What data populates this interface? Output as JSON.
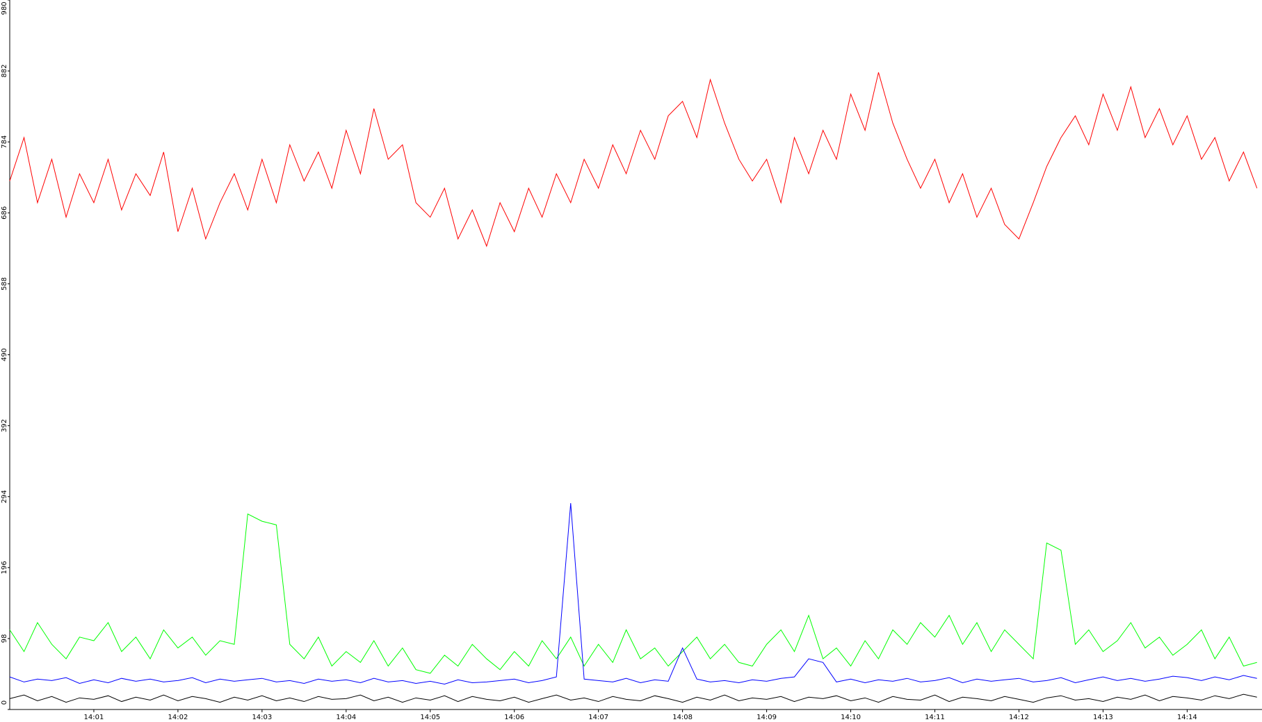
{
  "chart_data": {
    "type": "line",
    "x": [
      0,
      0.17,
      0.33,
      0.5,
      0.67,
      0.83,
      1,
      1.17,
      1.33,
      1.5,
      1.67,
      1.83,
      2,
      2.17,
      2.33,
      2.5,
      2.67,
      2.83,
      3,
      3.17,
      3.33,
      3.5,
      3.67,
      3.83,
      4,
      4.17,
      4.33,
      4.5,
      4.67,
      4.83,
      5,
      5.17,
      5.33,
      5.5,
      5.67,
      5.83,
      6,
      6.17,
      6.33,
      6.5,
      6.67,
      6.83,
      7,
      7.17,
      7.33,
      7.5,
      7.67,
      7.83,
      8,
      8.17,
      8.33,
      8.5,
      8.67,
      8.83,
      9,
      9.17,
      9.33,
      9.5,
      9.67,
      9.83,
      10,
      10.17,
      10.33,
      10.5,
      10.67,
      10.83,
      11,
      11.17,
      11.33,
      11.5,
      11.67,
      11.83,
      12,
      12.17,
      12.33,
      12.5,
      12.67,
      12.83,
      13,
      13.17,
      13.33,
      13.5,
      13.67,
      13.83,
      14,
      14.17,
      14.33,
      14.5,
      14.67,
      14.83
    ],
    "series": [
      {
        "color": "#ff0000",
        "values": [
          730,
          790,
          700,
          760,
          680,
          740,
          700,
          760,
          690,
          740,
          710,
          770,
          660,
          720,
          650,
          700,
          740,
          690,
          760,
          700,
          780,
          730,
          770,
          720,
          800,
          740,
          830,
          760,
          780,
          700,
          680,
          720,
          650,
          690,
          640,
          700,
          660,
          720,
          680,
          740,
          700,
          760,
          720,
          780,
          740,
          800,
          760,
          820,
          840,
          790,
          870,
          810,
          760,
          730,
          760,
          700,
          790,
          740,
          800,
          760,
          850,
          800,
          880,
          810,
          760,
          720,
          760,
          700,
          740,
          680,
          720,
          670,
          650,
          700,
          750,
          790,
          820,
          780,
          850,
          800,
          860,
          790,
          830,
          780,
          820,
          760,
          790,
          730,
          770,
          720
        ]
      },
      {
        "color": "#00ff00",
        "values": [
          110,
          80,
          120,
          90,
          70,
          100,
          95,
          120,
          80,
          100,
          70,
          110,
          85,
          100,
          75,
          95,
          90,
          270,
          260,
          255,
          90,
          70,
          100,
          60,
          80,
          65,
          95,
          60,
          85,
          55,
          50,
          75,
          60,
          90,
          70,
          55,
          80,
          60,
          95,
          70,
          100,
          60,
          90,
          65,
          110,
          70,
          85,
          60,
          80,
          100,
          70,
          90,
          65,
          60,
          90,
          110,
          80,
          130,
          70,
          85,
          60,
          95,
          70,
          110,
          90,
          120,
          100,
          130,
          90,
          120,
          80,
          110,
          90,
          70,
          230,
          220,
          90,
          110,
          80,
          95,
          120,
          85,
          100,
          75,
          90,
          110,
          70,
          100,
          60,
          65
        ]
      },
      {
        "color": "#0000ff",
        "values": [
          45,
          38,
          42,
          40,
          44,
          36,
          41,
          37,
          43,
          39,
          42,
          38,
          40,
          44,
          37,
          42,
          39,
          41,
          43,
          38,
          40,
          36,
          42,
          39,
          41,
          37,
          43,
          38,
          40,
          36,
          39,
          35,
          41,
          37,
          38,
          40,
          42,
          37,
          40,
          45,
          285,
          42,
          40,
          38,
          43,
          37,
          41,
          39,
          85,
          42,
          38,
          40,
          37,
          41,
          39,
          43,
          45,
          70,
          65,
          38,
          42,
          37,
          41,
          39,
          43,
          38,
          40,
          44,
          37,
          42,
          39,
          41,
          43,
          38,
          40,
          44,
          37,
          41,
          45,
          40,
          43,
          39,
          42,
          46,
          44,
          40,
          45,
          41,
          47,
          43
        ]
      },
      {
        "color": "#000000",
        "values": [
          15,
          20,
          12,
          18,
          10,
          16,
          14,
          19,
          11,
          17,
          13,
          20,
          12,
          18,
          15,
          10,
          17,
          13,
          19,
          12,
          16,
          11,
          18,
          14,
          15,
          20,
          12,
          17,
          10,
          16,
          13,
          19,
          11,
          18,
          14,
          12,
          17,
          10,
          15,
          20,
          13,
          16,
          11,
          18,
          14,
          12,
          19,
          15,
          10,
          17,
          13,
          20,
          12,
          16,
          14,
          18,
          11,
          17,
          15,
          19,
          12,
          16,
          10,
          18,
          14,
          13,
          20,
          11,
          17,
          15,
          12,
          18,
          14,
          10,
          16,
          19,
          13,
          15,
          11,
          17,
          14,
          20,
          12,
          18,
          16,
          13,
          19,
          15,
          21,
          17
        ]
      }
    ],
    "xlim": [
      0,
      14.89
    ],
    "xticks": [
      {
        "value": 1,
        "label": "14:01"
      },
      {
        "value": 2,
        "label": "14:02"
      },
      {
        "value": 3,
        "label": "14:03"
      },
      {
        "value": 4,
        "label": "14:04"
      },
      {
        "value": 5,
        "label": "14:05"
      },
      {
        "value": 6,
        "label": "14:06"
      },
      {
        "value": 7,
        "label": "14:07"
      },
      {
        "value": 8,
        "label": "14:08"
      },
      {
        "value": 9,
        "label": "14:09"
      },
      {
        "value": 10,
        "label": "14:10"
      },
      {
        "value": 11,
        "label": "14:11"
      },
      {
        "value": 12,
        "label": "14:12"
      },
      {
        "value": 13,
        "label": "14:13"
      },
      {
        "value": 14,
        "label": "14:14"
      }
    ],
    "ylim": [
      0,
      980
    ],
    "yticks": [
      0,
      98,
      196,
      294,
      392,
      490,
      588,
      686,
      784,
      882,
      980
    ],
    "grid": false
  }
}
